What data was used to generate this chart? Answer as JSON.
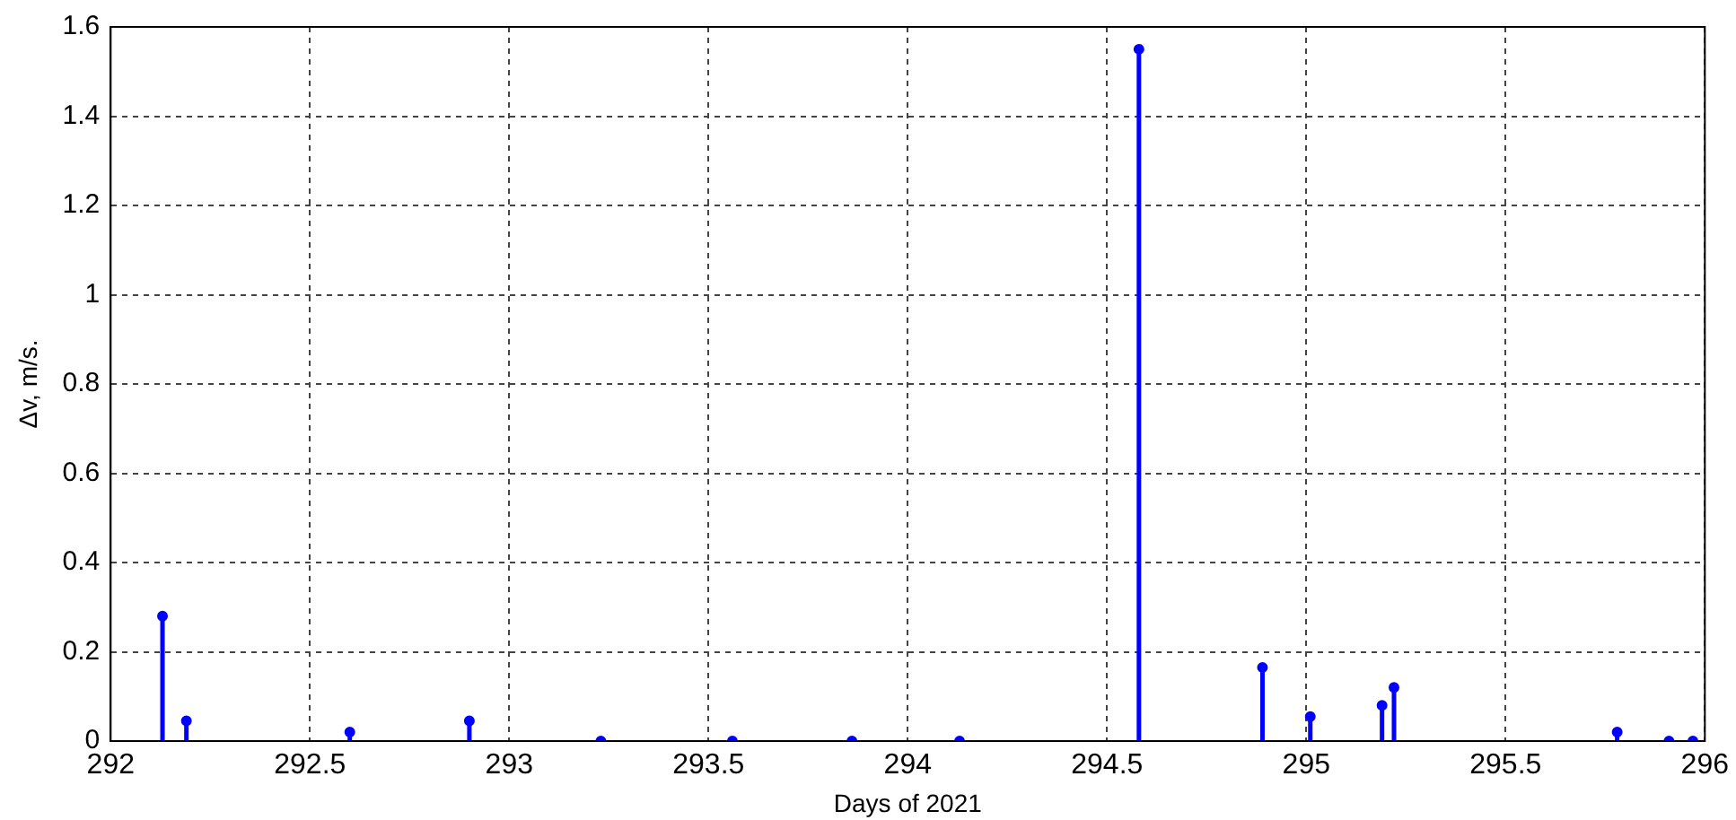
{
  "chart_data": {
    "type": "lollipop",
    "xlabel": "Days of 2021",
    "ylabel": "Δv, m/s.",
    "x": [
      292.13,
      292.19,
      292.6,
      292.9,
      293.23,
      293.56,
      293.86,
      294.13,
      294.58,
      294.89,
      295.01,
      295.19,
      295.22,
      295.78,
      295.91,
      295.97
    ],
    "values": [
      0.28,
      0.045,
      0.02,
      0.045,
      0,
      0,
      0,
      0,
      1.55,
      0.165,
      0.055,
      0.08,
      0.12,
      0.02,
      0,
      0
    ],
    "color": "#0000ff",
    "marker": "circle",
    "grid": true,
    "xlim": [
      292,
      296
    ],
    "xticks": [
      292,
      292.5,
      293,
      293.5,
      294,
      294.5,
      295,
      295.5,
      296
    ],
    "ylim": [
      0,
      1.6
    ],
    "yticks": [
      0,
      0.2,
      0.4,
      0.6,
      0.8,
      1,
      1.2,
      1.4,
      1.6
    ]
  }
}
